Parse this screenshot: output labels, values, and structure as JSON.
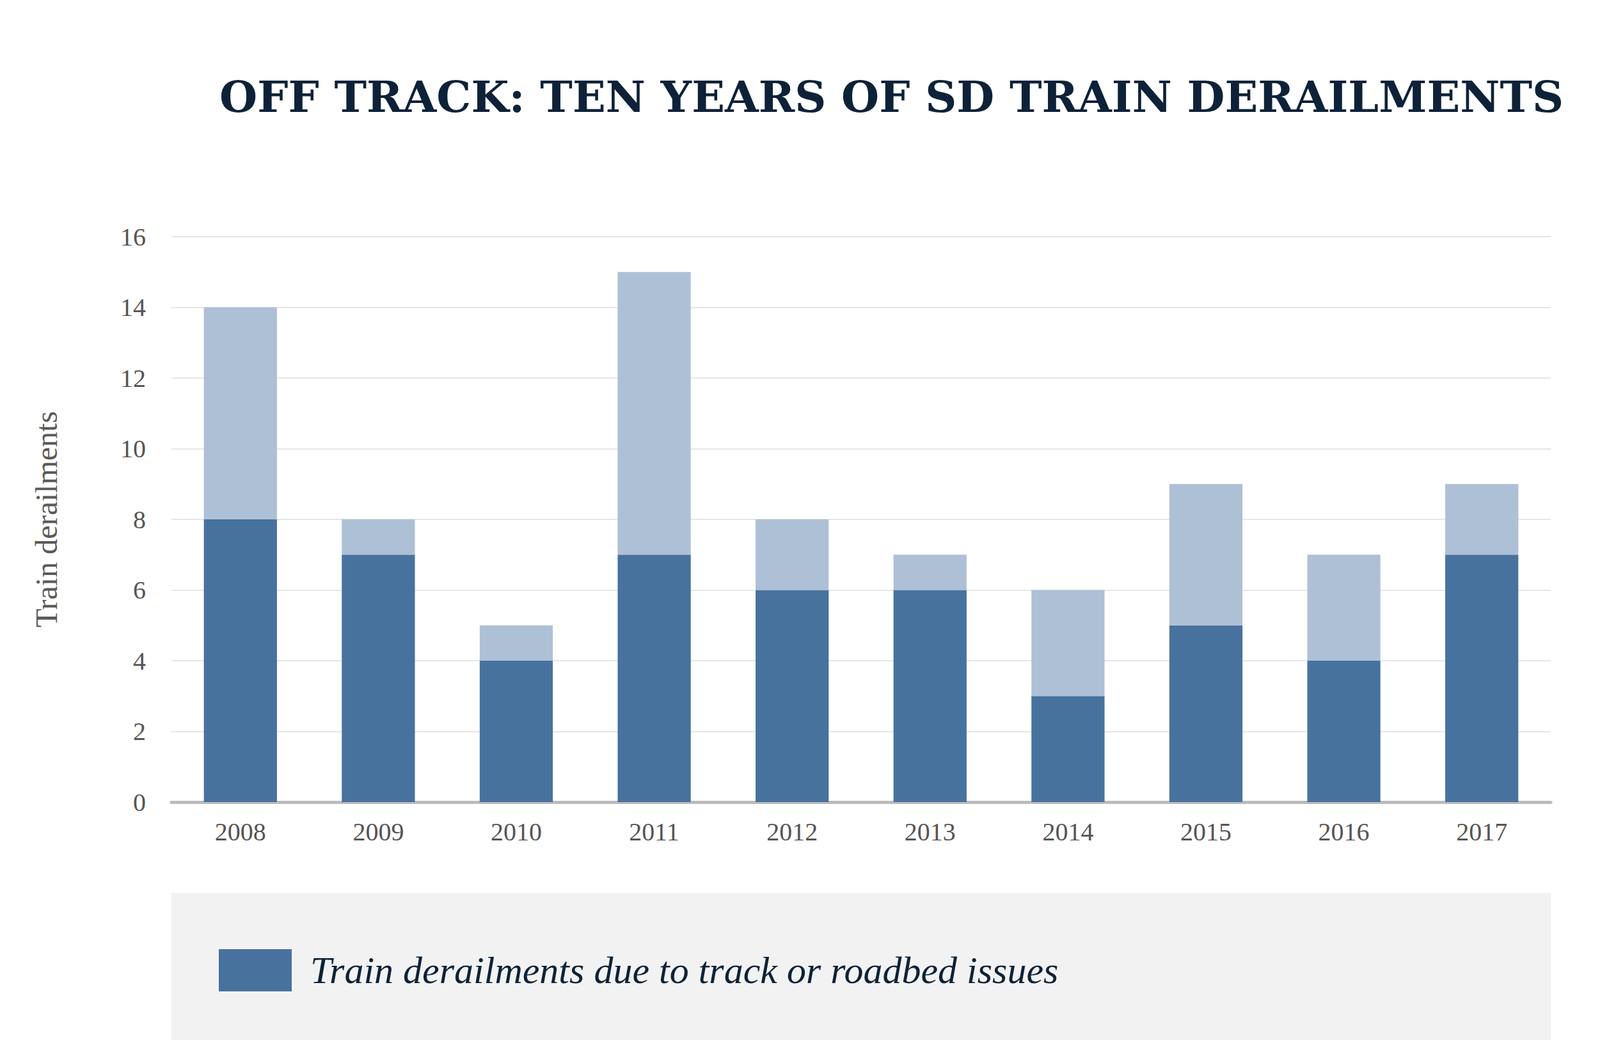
{
  "chart_data": {
    "type": "bar",
    "title": "OFF TRACK: TEN YEARS OF SD TRAIN DERAILMENTS",
    "y_label": "Train derailments",
    "categories": [
      "2008",
      "2009",
      "2010",
      "2011",
      "2012",
      "2013",
      "2014",
      "2015",
      "2016",
      "2017"
    ],
    "series": [
      {
        "name": "Train derailments due to track or roadbed issues",
        "color": "#48729e",
        "values": [
          8,
          7,
          4,
          7,
          6,
          6,
          3,
          5,
          4,
          7
        ]
      },
      {
        "color": "#adc0d6",
        "values": [
          6,
          1,
          1,
          8,
          2,
          1,
          3,
          4,
          3,
          2
        ]
      }
    ],
    "ylim": [
      0,
      16
    ],
    "yticks": [
      0,
      2,
      4,
      6,
      8,
      10,
      12,
      14,
      16
    ],
    "grid": true,
    "stacked": true,
    "legend": "bottom"
  }
}
